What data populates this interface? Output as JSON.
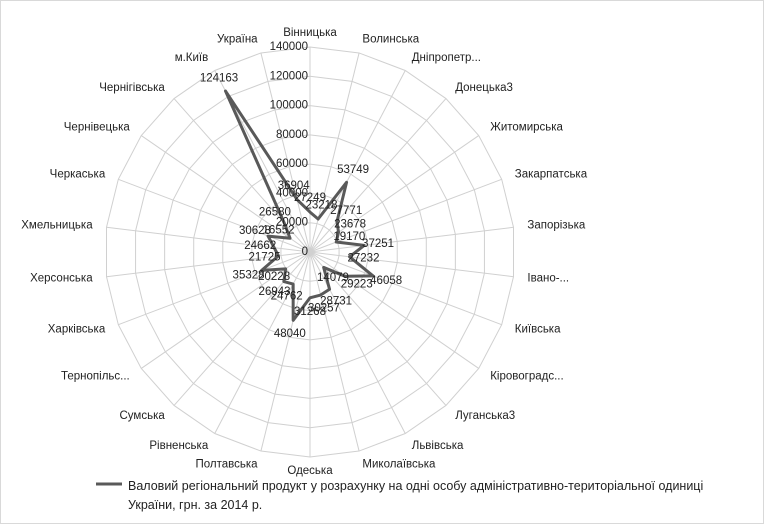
{
  "chart_data": {
    "type": "radar",
    "categories": [
      "Вінницька",
      "Волинська",
      "Дніпропетр...",
      "Донецька3",
      "Житомирська",
      "Закарпатська",
      "Запорізька",
      "Івано-...",
      "Київська",
      "Кіровоградс...",
      "Луганська3",
      "Львівська",
      "Миколаївська",
      "Одеська",
      "Полтавська",
      "Рівненська",
      "Сумська",
      "Тернопільс...",
      "Харківська",
      "Херсонська",
      "Хмельницька",
      "Черкаська",
      "Чернівецька",
      "Чернігівська",
      "м.Київ",
      "Україна"
    ],
    "series": [
      {
        "name": "Валовий регіональний продукт у розрахунку на одні особу адміністративно-територіальної одиниці України, грн. за 2014 р.",
        "color": "#595959",
        "values": [
          27249,
          23218,
          53749,
          27771,
          23678,
          19170,
          37251,
          27232,
          46058,
          29223,
          14079,
          28731,
          30257,
          31268,
          48040,
          24762,
          26943,
          20228,
          35328,
          21725,
          24662,
          30628,
          16552,
          26580,
          124163,
          36904
        ]
      }
    ],
    "ylim": [
      0,
      140000
    ],
    "yticks": [
      0,
      20000,
      40000,
      60000,
      80000,
      100000,
      120000,
      140000
    ],
    "grid": true,
    "legend": "bottom"
  }
}
